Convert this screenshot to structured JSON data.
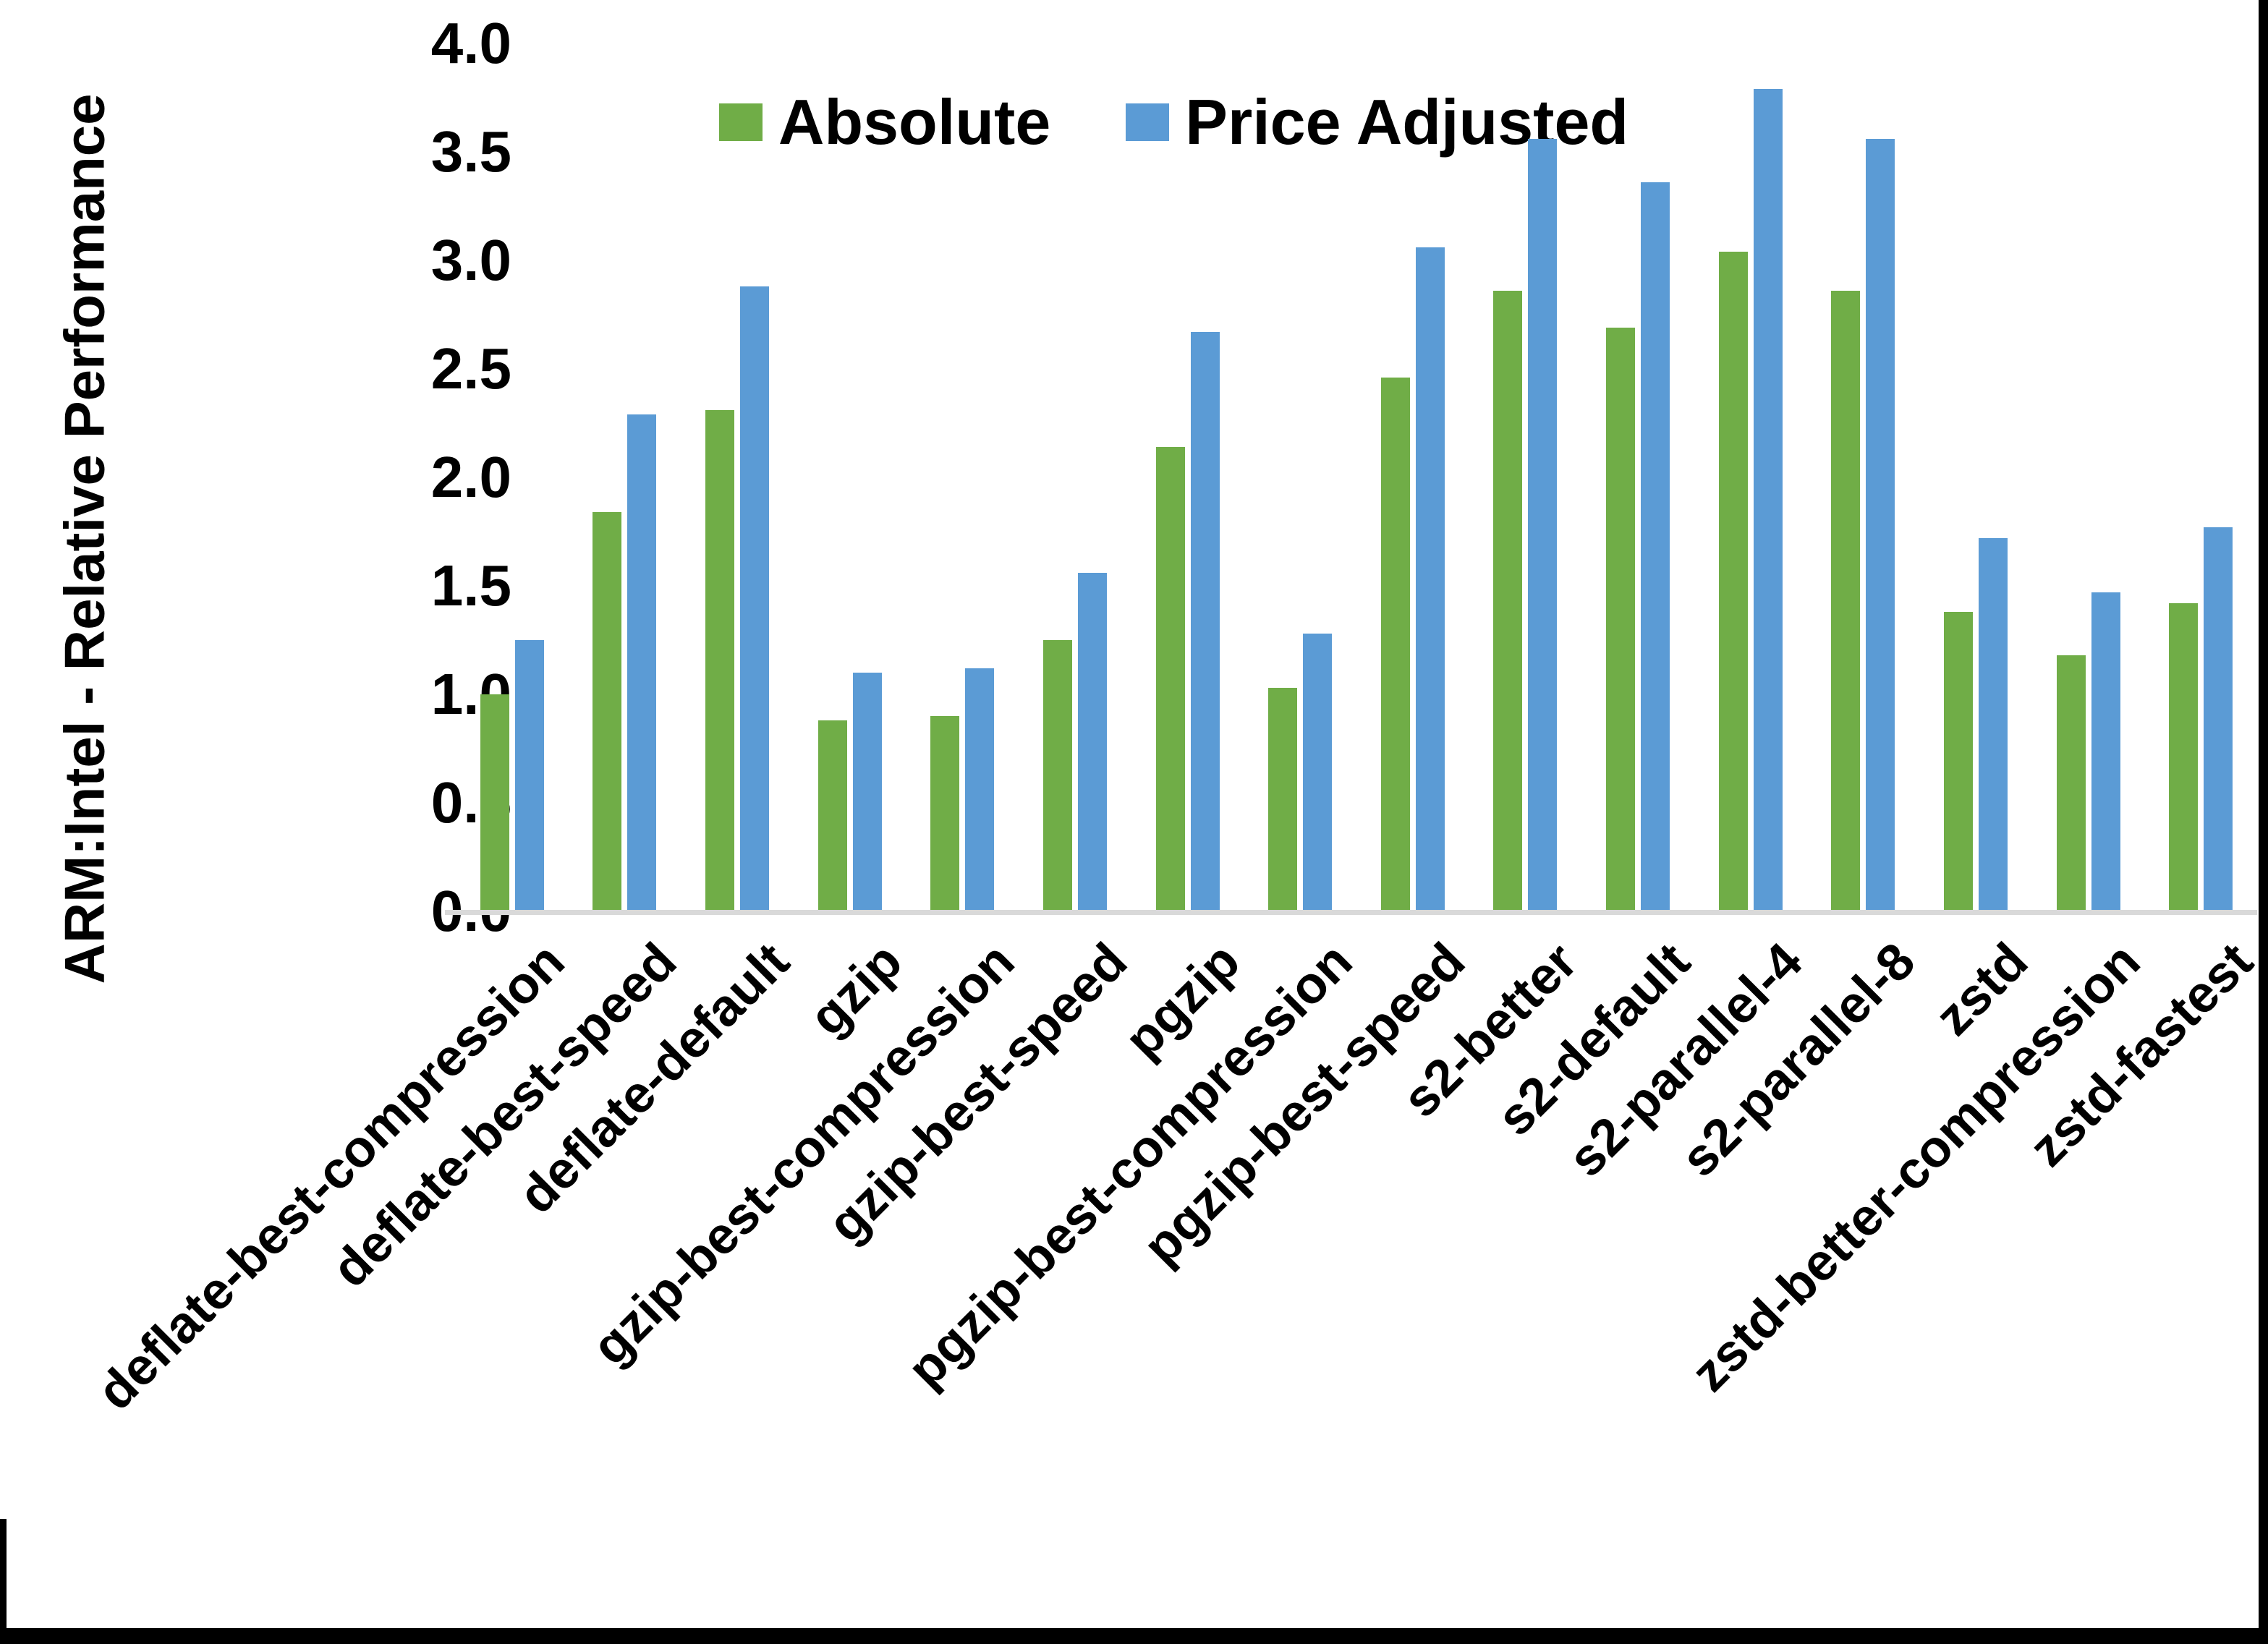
{
  "frame": {
    "background": "#ffffff",
    "border_color": "#000000",
    "axis_line_color": "#d9d9d9"
  },
  "legend": {
    "items": [
      {
        "label": "Absolute",
        "color": "#70AD47"
      },
      {
        "label": "Price Adjusted",
        "color": "#5B9BD5"
      }
    ]
  },
  "chart_data": {
    "type": "bar",
    "title": "",
    "xlabel": "",
    "ylabel": "ARM:Intel - Relative Performance",
    "ylim": [
      0.0,
      4.0
    ],
    "ytick_step": 0.5,
    "ytick_labels": [
      "0.0",
      "0.5",
      "1.0",
      "1.5",
      "2.0",
      "2.5",
      "3.0",
      "3.5",
      "4.0"
    ],
    "grid": false,
    "legend_position": "top-center",
    "bar_colors": {
      "Absolute": "#70AD47",
      "Price Adjusted": "#5B9BD5"
    },
    "categories": [
      "deflate-best-compression",
      "deflate-best-speed",
      "deflate-default",
      "gzip",
      "gzip-best-compression",
      "gzip-best-speed",
      "pgzip",
      "pgzip-best-compression",
      "pgzip-best-speed",
      "s2-better",
      "s2-default",
      "s2-parallel-4",
      "s2-parallel-8",
      "zstd",
      "zstd-better-compression",
      "zstd-fastest"
    ],
    "series": [
      {
        "name": "Absolute",
        "color": "#70AD47",
        "values": [
          1.0,
          1.84,
          2.31,
          0.88,
          0.9,
          1.25,
          2.14,
          1.03,
          2.46,
          2.86,
          2.69,
          3.04,
          2.86,
          1.38,
          1.18,
          1.42
        ]
      },
      {
        "name": "Price Adjusted",
        "color": "#5B9BD5",
        "values": [
          1.25,
          2.29,
          2.88,
          1.1,
          1.12,
          1.56,
          2.67,
          1.28,
          3.06,
          3.56,
          3.36,
          3.79,
          3.56,
          1.72,
          1.47,
          1.77
        ]
      }
    ]
  }
}
